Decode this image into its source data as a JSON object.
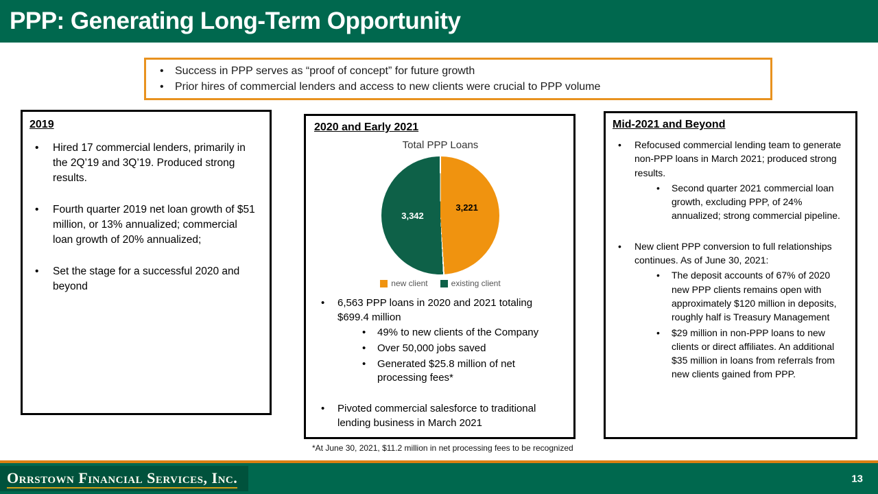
{
  "header": {
    "title": "PPP: Generating Long-Term Opportunity"
  },
  "summary_box": {
    "bullets": [
      "Success in PPP serves as “proof of concept” for future growth",
      "Prior hires of commercial lenders and access to new clients were crucial to PPP volume"
    ]
  },
  "left_panel": {
    "heading": "2019",
    "bullets": [
      "Hired 17 commercial lenders, primarily in the 2Q’19 and 3Q’19.  Produced strong results.",
      "Fourth quarter 2019 net loan growth of $51 million, or 13% annualized; commercial loan growth of 20% annualized;",
      "Set the stage for a successful 2020 and beyond"
    ]
  },
  "middle_panel": {
    "heading": "2020 and Early 2021",
    "b1": "6,563 PPP loans in 2020 and 2021 totaling $699.4 million",
    "b1_sub": [
      "49% to new clients of the Company",
      "Over 50,000 jobs saved",
      "Generated $25.8 million of net processing fees*"
    ],
    "b2": "Pivoted commercial salesforce to traditional lending business in March 2021",
    "footnote": "*At June 30, 2021, $11.2 million in net processing fees to be recognized"
  },
  "right_panel": {
    "heading": "Mid-2021 and Beyond",
    "b1": "Refocused commercial lending team to generate non-PPP loans in March 2021; produced strong results.",
    "b1_sub": [
      "Second quarter 2021 commercial loan growth, excluding PPP, of 24% annualized; strong commercial pipeline."
    ],
    "b2": "New client PPP conversion to full relationships continues. As of June 30, 2021:",
    "b2_sub": [
      "The deposit accounts of 67% of 2020 new PPP clients remains open with approximately $120 million in deposits, roughly half is Treasury Management",
      "$29 million in non-PPP loans to new clients or direct affiliates.  An additional $35 million in loans from referrals from new clients gained from PPP."
    ]
  },
  "chart_data": {
    "type": "pie",
    "title": "Total PPP Loans",
    "total": 6563,
    "slices": [
      {
        "label": "new client",
        "value": 3221,
        "value_label": "3,221",
        "color": "#F0930F"
      },
      {
        "label": "existing client",
        "value": 3342,
        "value_label": "3,342",
        "color": "#0E6148"
      }
    ],
    "legend_position": "bottom"
  },
  "footer": {
    "logo_text": "Orrstown Financial Services, Inc.",
    "page_number": "13"
  },
  "colors": {
    "header_green": "#00684E",
    "footer_green": "#00684E",
    "accent_orange": "#E8921F",
    "footer_accent_orange": "#DC8012",
    "logo_gold": "#D4A017",
    "panel_border": "#000000"
  }
}
